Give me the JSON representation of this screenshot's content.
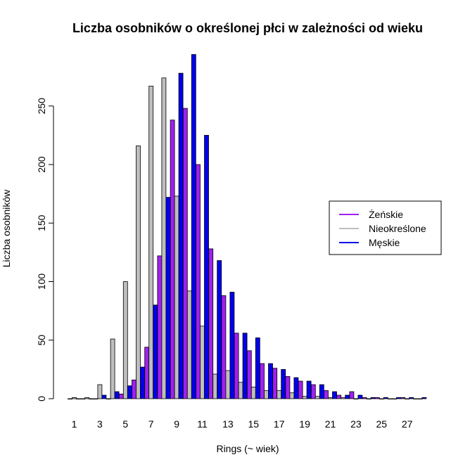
{
  "chart_data": {
    "type": "bar",
    "title": "Liczba osobników o określonej płci w zależności od wieku",
    "xlabel": "Rings (~ wiek)",
    "ylabel": "Liczba osobników",
    "ylim": [
      0,
      300
    ],
    "y_ticks": [
      0,
      50,
      100,
      150,
      200,
      250
    ],
    "x_tick_labels": [
      "1",
      "3",
      "5",
      "7",
      "9",
      "11",
      "13",
      "15",
      "17",
      "19",
      "21",
      "23",
      "25",
      "27"
    ],
    "categories": [
      1,
      2,
      3,
      4,
      5,
      6,
      7,
      8,
      9,
      10,
      11,
      12,
      13,
      14,
      15,
      16,
      17,
      18,
      19,
      20,
      21,
      22,
      23,
      24,
      25,
      26,
      27,
      28
    ],
    "legend_position": "right",
    "series": [
      {
        "name": "Żeńskie",
        "color": "#a020f0",
        "values": [
          0,
          0,
          0,
          0,
          4,
          16,
          44,
          122,
          238,
          248,
          200,
          128,
          88,
          56,
          41,
          30,
          26,
          19,
          15,
          12,
          7,
          3,
          6,
          1,
          1,
          0,
          1,
          0
        ]
      },
      {
        "name": "Nieokreślone",
        "color": "#bebebe",
        "values": [
          1,
          1,
          12,
          51,
          100,
          216,
          267,
          274,
          173,
          92,
          62,
          21,
          24,
          14,
          10,
          7,
          7,
          5,
          2,
          2,
          1,
          1,
          0,
          0,
          0,
          0,
          0,
          0
        ]
      },
      {
        "name": "Męskie",
        "color": "#0000ee",
        "values": [
          0,
          0,
          3,
          6,
          11,
          27,
          80,
          172,
          278,
          294,
          225,
          118,
          91,
          56,
          52,
          30,
          25,
          18,
          15,
          12,
          6,
          3,
          3,
          1,
          1,
          1,
          1,
          1
        ]
      }
    ]
  }
}
